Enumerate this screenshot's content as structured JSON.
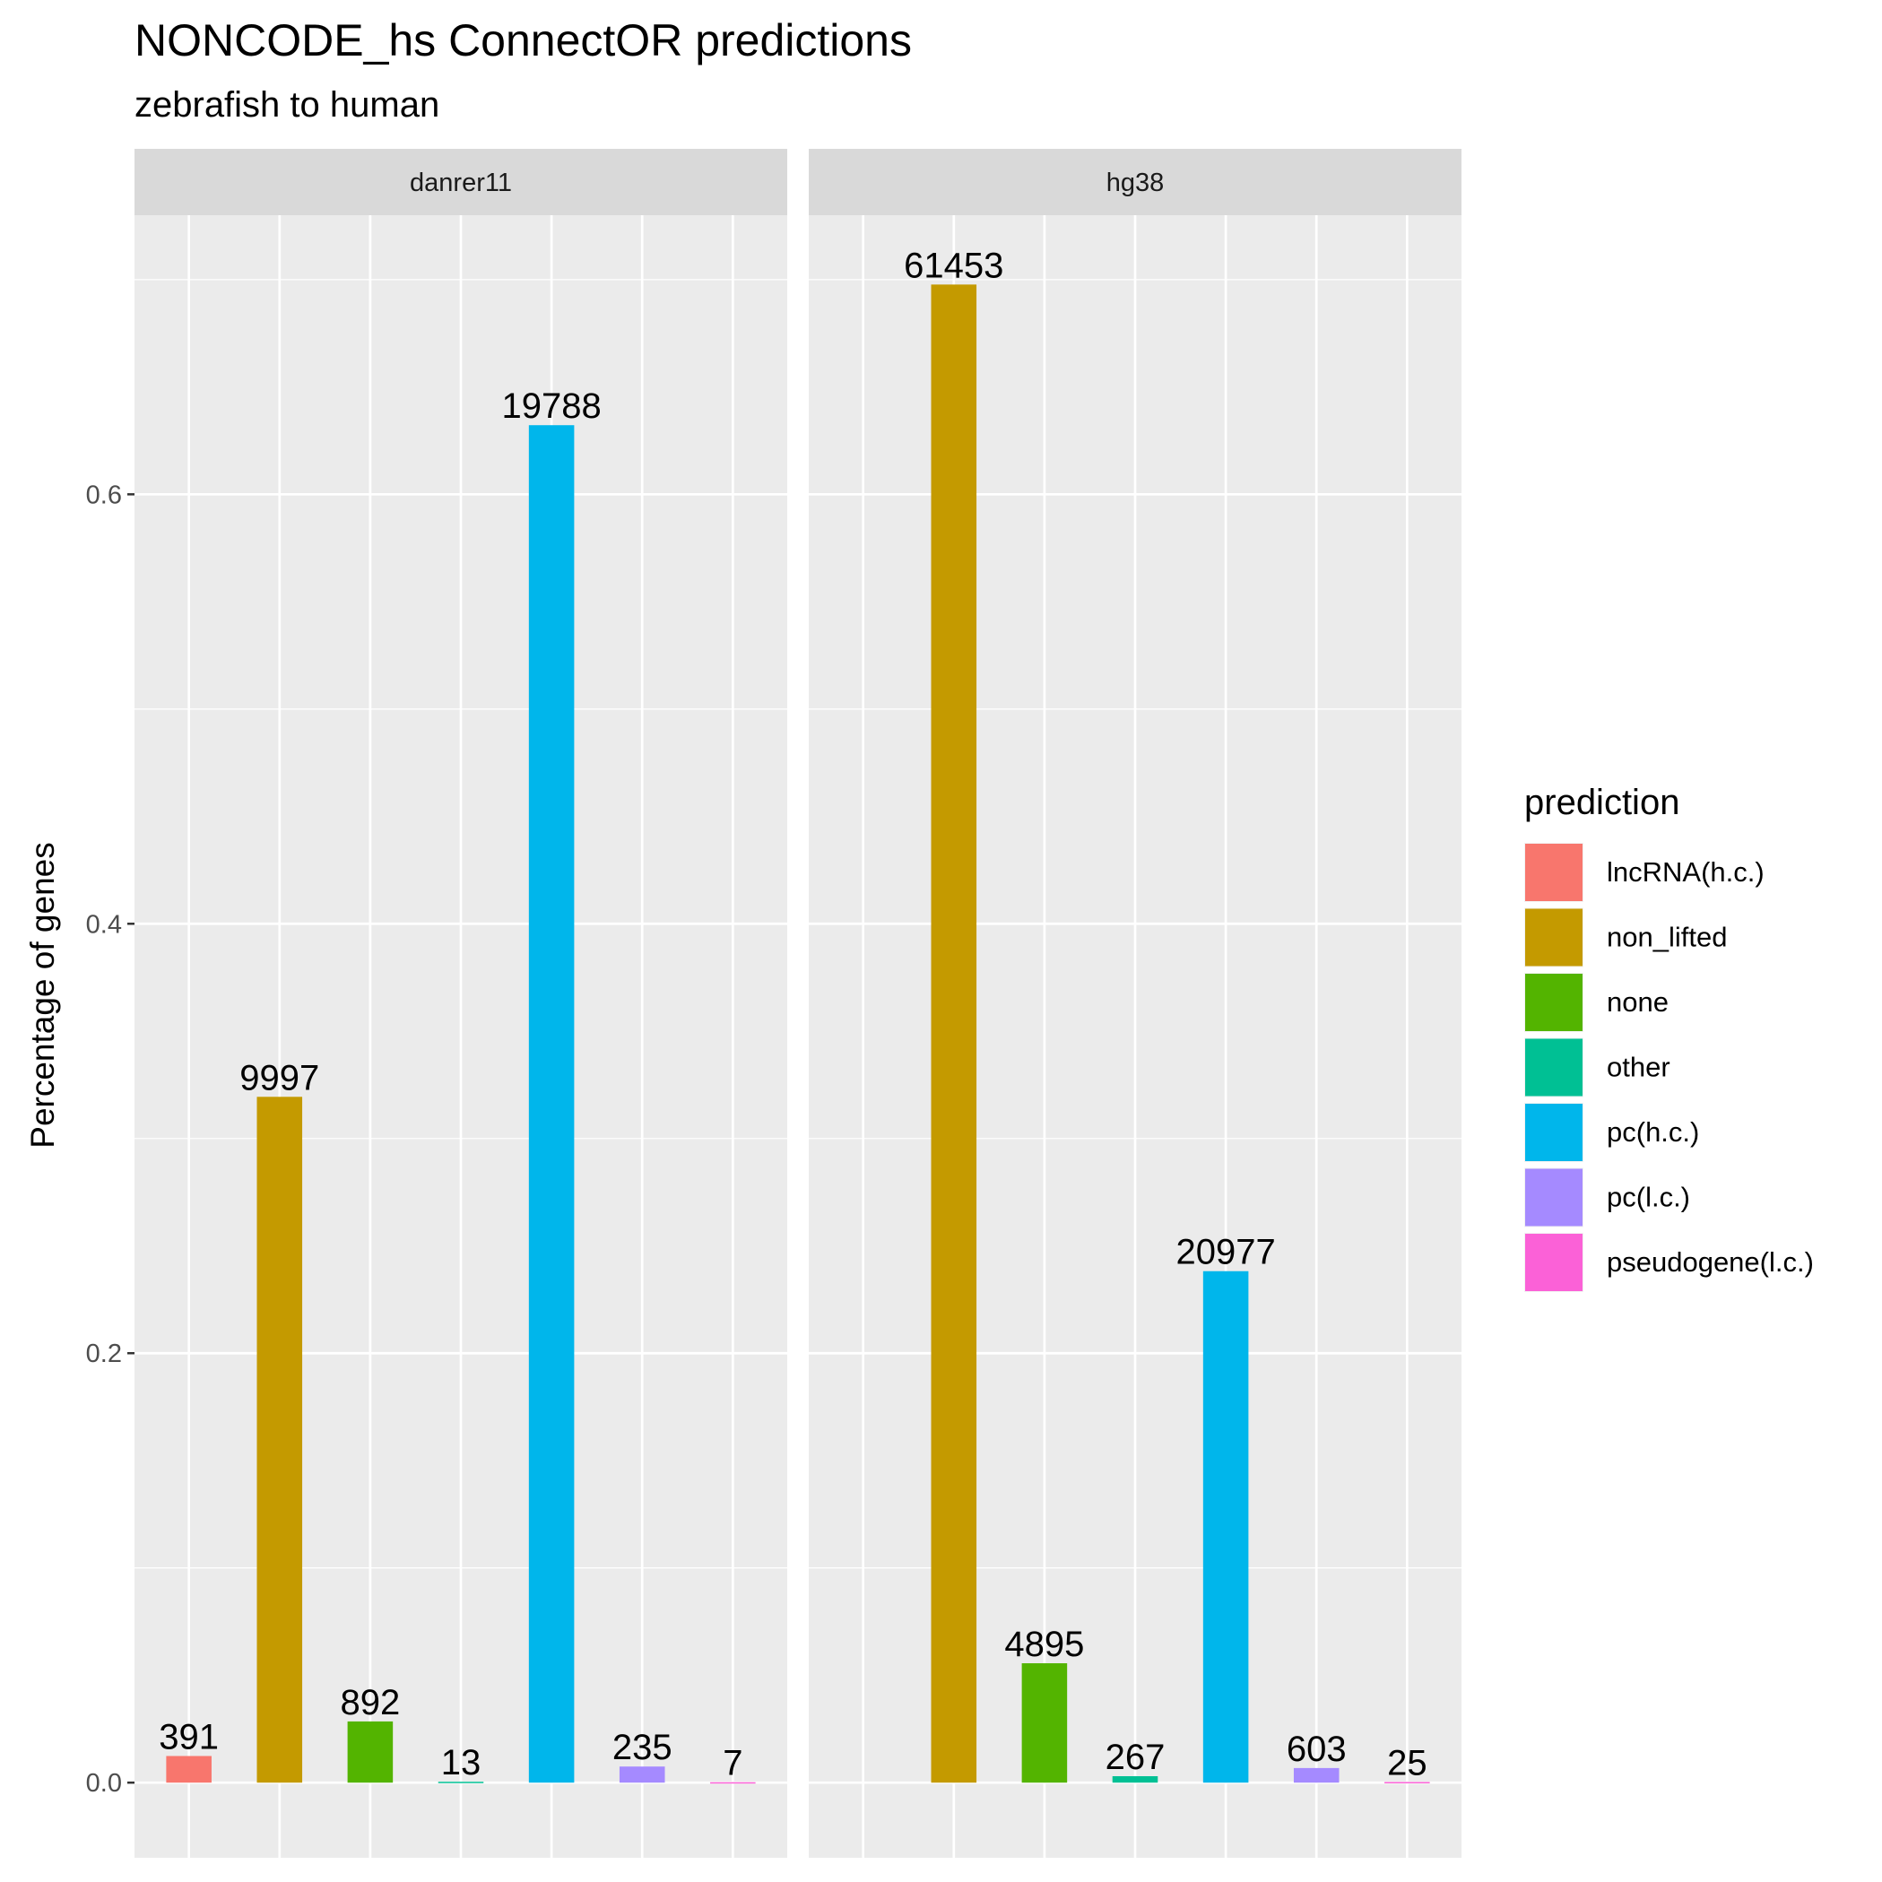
{
  "chart_data": {
    "type": "bar",
    "title": "NONCODE_hs ConnectOR predictions",
    "subtitle": "zebrafish to human",
    "xlabel": "",
    "ylabel": "Percentage of genes",
    "ylim": [
      -0.035,
      0.73
    ],
    "yticks": [
      "0.0",
      "0.2",
      "0.4",
      "0.6"
    ],
    "ytick_values": [
      0.0,
      0.2,
      0.4,
      0.6
    ],
    "grid": true,
    "legend": {
      "title": "prediction",
      "position": "right",
      "items": [
        {
          "label": "lncRNA(h.c.)",
          "color": "#F8766D"
        },
        {
          "label": "non_lifted",
          "color": "#C49A00"
        },
        {
          "label": "none",
          "color": "#53B400"
        },
        {
          "label": "other",
          "color": "#00C094"
        },
        {
          "label": "pc(h.c.)",
          "color": "#00B6EB"
        },
        {
          "label": "pc(l.c.)",
          "color": "#A58AFF"
        },
        {
          "label": "pseudogene(l.c.)",
          "color": "#FB61D7"
        }
      ]
    },
    "facets": [
      {
        "name": "danrer11",
        "bars": [
          {
            "category": "lncRNA(h.c.)",
            "value": 0.0124,
            "label": "391"
          },
          {
            "category": "non_lifted",
            "value": 0.3194,
            "label": "9997"
          },
          {
            "category": "none",
            "value": 0.0285,
            "label": "892"
          },
          {
            "category": "other",
            "value": 0.0004,
            "label": "13"
          },
          {
            "category": "pc(h.c.)",
            "value": 0.6322,
            "label": "19788"
          },
          {
            "category": "pc(l.c.)",
            "value": 0.0075,
            "label": "235"
          },
          {
            "category": "pseudogene(l.c.)",
            "value": 0.0002,
            "label": "7"
          }
        ]
      },
      {
        "name": "hg38",
        "bars": [
          {
            "category": "non_lifted",
            "value": 0.6977,
            "label": "61453"
          },
          {
            "category": "none",
            "value": 0.0556,
            "label": "4895"
          },
          {
            "category": "other",
            "value": 0.003,
            "label": "267"
          },
          {
            "category": "pc(h.c.)",
            "value": 0.2382,
            "label": "20977"
          },
          {
            "category": "pc(l.c.)",
            "value": 0.0068,
            "label": "603"
          },
          {
            "category": "pseudogene(l.c.)",
            "value": 0.0003,
            "label": "25"
          }
        ]
      }
    ]
  }
}
